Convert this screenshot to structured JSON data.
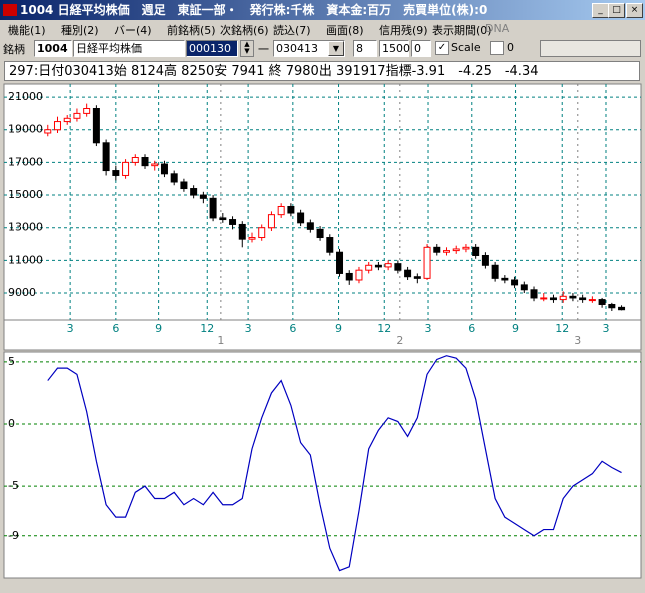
{
  "window": {
    "title": "1004 日経平均株価　週足　東証一部・　発行株:千株　資本金:百万　売買単位(株):0"
  },
  "menu": [
    "機能(1)",
    "種別(2)",
    "バー(4)",
    "前銘柄(5)",
    "次銘柄(6)",
    "読込(7)",
    "画面(8)",
    "信用残(9)",
    "表示期間(0)",
    "DNA"
  ],
  "toolbar": {
    "label": "銘柄",
    "code": "1004",
    "name": "日経平均株価",
    "field": "000130",
    "dash": "一",
    "date": "030413",
    "n1": "8",
    "n2": "1500",
    "n3": "0",
    "scale": "Scale",
    "check2": "0"
  },
  "info_line": "297:日付030413始 8124高 8250安 7941 終 7980出 391917指標-3.91　-4.25　-4.34",
  "chart_data": [
    {
      "type": "candlestick",
      "open": [
        18800,
        19000,
        19500,
        19700,
        20000,
        20300,
        18200,
        16500,
        16200,
        17000,
        17300,
        16800,
        16900,
        16300,
        15800,
        15400,
        15000,
        14800,
        13600,
        13500,
        13200,
        12300,
        12400,
        13000,
        13800,
        14300,
        13900,
        13300,
        12900,
        12400,
        11500,
        10200,
        9800,
        10400,
        10700,
        10600,
        10800,
        10400,
        10000,
        9900,
        11800,
        11500,
        11600,
        11700,
        11800,
        11300,
        10700,
        9900,
        9800,
        9500,
        9200,
        8700,
        8700,
        8600,
        8800,
        8700,
        8600,
        8600,
        8300,
        8124
      ],
      "high": [
        19300,
        19800,
        19900,
        20300,
        20600,
        20500,
        18400,
        16800,
        17200,
        17500,
        17500,
        17100,
        17100,
        16500,
        16000,
        15600,
        15200,
        15000,
        13900,
        13700,
        13400,
        12700,
        13200,
        14000,
        14500,
        14500,
        14100,
        13500,
        13100,
        12600,
        11700,
        10400,
        10600,
        10900,
        10900,
        11000,
        11000,
        10600,
        10200,
        12000,
        12000,
        11800,
        11900,
        12000,
        12000,
        11500,
        10900,
        10100,
        10000,
        9700,
        9400,
        9000,
        8900,
        9100,
        9000,
        8900,
        8800,
        8700,
        8400,
        8250
      ],
      "low": [
        18600,
        18800,
        19300,
        19500,
        19800,
        18000,
        16200,
        15900,
        16000,
        16800,
        16600,
        16500,
        16100,
        15600,
        15200,
        14800,
        14500,
        13400,
        13300,
        12900,
        11800,
        12100,
        12200,
        12800,
        13600,
        13700,
        13100,
        12700,
        12200,
        11300,
        10000,
        9500,
        9600,
        10200,
        10400,
        10400,
        10200,
        9800,
        9600,
        9800,
        11300,
        11300,
        11400,
        11500,
        11100,
        10500,
        9700,
        9600,
        9300,
        9000,
        8500,
        8500,
        8400,
        8400,
        8500,
        8400,
        8400,
        8100,
        7900,
        7941
      ],
      "close": [
        19000,
        19500,
        19700,
        20000,
        20300,
        18200,
        16500,
        16200,
        17000,
        17300,
        16800,
        16900,
        16300,
        15800,
        15400,
        15000,
        14800,
        13600,
        13500,
        13200,
        12300,
        12400,
        13000,
        13800,
        14300,
        13900,
        13300,
        12900,
        12400,
        11500,
        10200,
        9800,
        10400,
        10700,
        10600,
        10800,
        10400,
        10000,
        9900,
        11800,
        11500,
        11600,
        11700,
        11800,
        11300,
        10700,
        9900,
        9800,
        9500,
        9200,
        8700,
        8700,
        8600,
        8800,
        8700,
        8600,
        8600,
        8300,
        8100,
        7980
      ],
      "up_color": "#ff0000",
      "down_color": "#000000",
      "xlim": [
        -4.5,
        61
      ],
      "xticks": [
        {
          "value": 2.3,
          "label": "3"
        },
        {
          "value": 7.0,
          "label": "6"
        },
        {
          "value": 11.4,
          "label": "9"
        },
        {
          "value": 16.4,
          "label": "12"
        },
        {
          "value": 20.6,
          "label": "3"
        },
        {
          "value": 25.2,
          "label": "6"
        },
        {
          "value": 29.9,
          "label": "9"
        },
        {
          "value": 34.6,
          "label": "12"
        },
        {
          "value": 39.1,
          "label": "3"
        },
        {
          "value": 43.6,
          "label": "6"
        },
        {
          "value": 48.1,
          "label": "9"
        },
        {
          "value": 52.9,
          "label": "12"
        },
        {
          "value": 57.4,
          "label": "3"
        }
      ],
      "year_ticks": [
        {
          "value": 17.8,
          "label": "1"
        },
        {
          "value": 36.2,
          "label": "2"
        },
        {
          "value": 54.5,
          "label": "3"
        }
      ],
      "ylim": [
        7350,
        21800
      ],
      "yticks": [
        9000,
        11000,
        13000,
        15000,
        17000,
        19000,
        21000
      ],
      "grid": true
    },
    {
      "type": "line",
      "color": "#0000c0",
      "values": [
        3.5,
        4.5,
        4.5,
        4,
        1,
        -3,
        -6.5,
        -7.5,
        -7.5,
        -5.5,
        -5,
        -6,
        -6,
        -5.5,
        -6.5,
        -6,
        -6.5,
        -5.5,
        -6.5,
        -6.5,
        -6,
        -2,
        0.5,
        2.5,
        3.5,
        1.5,
        -1.5,
        -2.5,
        -6.5,
        -10,
        -11.8,
        -11.5,
        -7,
        -2,
        -0.5,
        0.5,
        0.2,
        -1,
        0.5,
        4,
        5.2,
        5.5,
        5.3,
        4.5,
        2,
        -2,
        -6,
        -7.5,
        -8,
        -8.5,
        -9,
        -8.5,
        -8.5,
        -6,
        -5,
        -4.5,
        -4,
        -3,
        -3.5,
        -3.91
      ],
      "xlim": [
        -4.5,
        61
      ],
      "ylim": [
        -12.4,
        5.8
      ],
      "yticks": [
        5,
        0,
        -5,
        -9
      ],
      "grid": true
    }
  ]
}
